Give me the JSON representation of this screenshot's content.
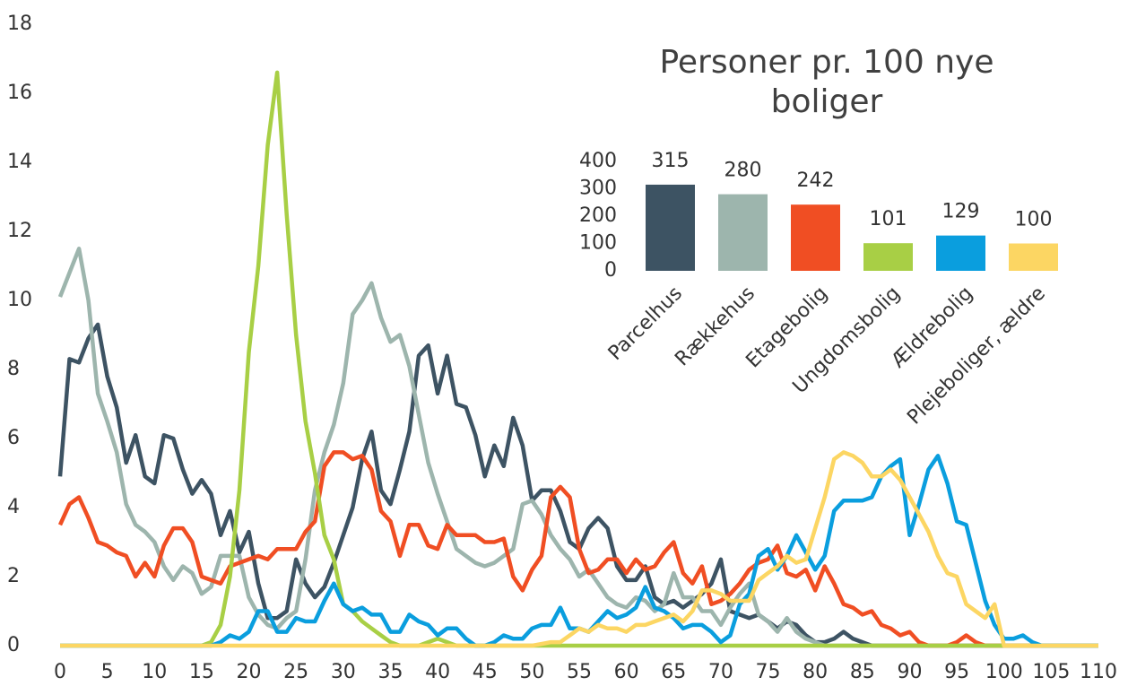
{
  "chart_data": [
    {
      "type": "line",
      "x": [
        0,
        1,
        2,
        3,
        4,
        5,
        6,
        7,
        8,
        9,
        10,
        11,
        12,
        13,
        14,
        15,
        16,
        17,
        18,
        19,
        20,
        21,
        22,
        23,
        24,
        25,
        26,
        27,
        28,
        29,
        30,
        31,
        32,
        33,
        34,
        35,
        36,
        37,
        38,
        39,
        40,
        41,
        42,
        43,
        44,
        45,
        46,
        47,
        48,
        49,
        50,
        51,
        52,
        53,
        54,
        55,
        56,
        57,
        58,
        59,
        60,
        61,
        62,
        63,
        64,
        65,
        66,
        67,
        68,
        69,
        70,
        71,
        72,
        73,
        74,
        75,
        76,
        77,
        78,
        79,
        80,
        81,
        82,
        83,
        84,
        85,
        86,
        87,
        88,
        89,
        90,
        91,
        92,
        93,
        94,
        95,
        96,
        97,
        98,
        99,
        100,
        101,
        102,
        103,
        104,
        105,
        106,
        107,
        108,
        109,
        110
      ],
      "xlim": [
        0,
        110
      ],
      "xticks": [
        0,
        5,
        10,
        15,
        20,
        25,
        30,
        35,
        40,
        45,
        50,
        55,
        60,
        65,
        70,
        75,
        80,
        85,
        90,
        95,
        100,
        105,
        110
      ],
      "ylim": [
        0,
        18
      ],
      "yticks": [
        0,
        2,
        4,
        6,
        8,
        10,
        12,
        14,
        16,
        18
      ],
      "series": [
        {
          "color": "#3d5363",
          "values": [
            4.9,
            8.3,
            8.2,
            8.9,
            9.3,
            7.8,
            6.9,
            5.3,
            6.1,
            4.9,
            4.7,
            6.1,
            6.0,
            5.1,
            4.4,
            4.8,
            4.4,
            3.2,
            3.9,
            2.7,
            3.3,
            1.8,
            0.8,
            0.8,
            1.0,
            2.5,
            1.8,
            1.4,
            1.7,
            2.4,
            3.2,
            4.0,
            5.4,
            6.2,
            4.5,
            4.1,
            5.1,
            6.2,
            8.4,
            8.7,
            7.3,
            8.4,
            7.0,
            6.9,
            6.1,
            4.9,
            5.8,
            5.2,
            6.6,
            5.8,
            4.2,
            4.5,
            4.5,
            3.9,
            3.0,
            2.8,
            3.4,
            3.7,
            3.4,
            2.3,
            1.9,
            1.9,
            2.3,
            1.4,
            1.2,
            1.3,
            1.1,
            1.3,
            1.5,
            1.8,
            2.5,
            1.0,
            0.9,
            0.8,
            0.9,
            0.7,
            0.5,
            0.7,
            0.6,
            0.3,
            0.1,
            0.1,
            0.2,
            0.4,
            0.2,
            0.1,
            0,
            0,
            0,
            0,
            0,
            0,
            0,
            0,
            0,
            0,
            0,
            0,
            0,
            0,
            0,
            0,
            0,
            0,
            0,
            0,
            0,
            0,
            0,
            0,
            0
          ]
        },
        {
          "color": "#9db5ad",
          "values": [
            10.1,
            10.8,
            11.5,
            10.0,
            7.3,
            6.5,
            5.6,
            4.1,
            3.5,
            3.3,
            3.0,
            2.3,
            1.9,
            2.3,
            2.1,
            1.5,
            1.7,
            2.6,
            2.6,
            2.6,
            1.4,
            0.9,
            0.6,
            0.5,
            0.8,
            1.0,
            2.5,
            4.5,
            5.6,
            6.4,
            7.6,
            9.6,
            10.0,
            10.5,
            9.5,
            8.8,
            9.0,
            8.1,
            6.7,
            5.3,
            4.4,
            3.6,
            2.8,
            2.6,
            2.4,
            2.3,
            2.4,
            2.6,
            2.8,
            4.1,
            4.2,
            3.8,
            3.2,
            2.8,
            2.5,
            2.0,
            2.2,
            1.8,
            1.4,
            1.2,
            1.1,
            1.4,
            1.3,
            1.0,
            1.2,
            2.1,
            1.4,
            1.4,
            1.0,
            1.0,
            0.6,
            1.1,
            1.5,
            1.8,
            0.9,
            0.7,
            0.4,
            0.8,
            0.4,
            0.2,
            0.1,
            0,
            0,
            0,
            0,
            0,
            0,
            0,
            0,
            0,
            0,
            0,
            0,
            0,
            0,
            0,
            0,
            0,
            0,
            0,
            0,
            0,
            0,
            0,
            0,
            0,
            0,
            0,
            0,
            0,
            0
          ]
        },
        {
          "color": "#f04e23",
          "values": [
            3.5,
            4.1,
            4.3,
            3.7,
            3.0,
            2.9,
            2.7,
            2.6,
            2.0,
            2.4,
            2.0,
            2.9,
            3.4,
            3.4,
            3.0,
            2.0,
            1.9,
            1.8,
            2.3,
            2.4,
            2.5,
            2.6,
            2.5,
            2.8,
            2.8,
            2.8,
            3.3,
            3.6,
            5.2,
            5.6,
            5.6,
            5.4,
            5.5,
            5.1,
            3.9,
            3.6,
            2.6,
            3.5,
            3.5,
            2.9,
            2.8,
            3.5,
            3.2,
            3.2,
            3.2,
            3.0,
            3.0,
            3.1,
            2.0,
            1.6,
            2.2,
            2.6,
            4.3,
            4.6,
            4.3,
            2.8,
            2.1,
            2.2,
            2.5,
            2.5,
            2.1,
            2.5,
            2.2,
            2.3,
            2.7,
            3.0,
            2.1,
            1.8,
            2.3,
            1.2,
            1.3,
            1.5,
            1.8,
            2.2,
            2.4,
            2.5,
            2.9,
            2.1,
            2.0,
            2.2,
            1.6,
            2.3,
            1.8,
            1.2,
            1.1,
            0.9,
            1.0,
            0.6,
            0.5,
            0.3,
            0.4,
            0.1,
            0,
            0,
            0,
            0.1,
            0.3,
            0.1,
            0,
            0,
            0,
            0,
            0,
            0,
            0,
            0,
            0,
            0,
            0,
            0,
            0
          ]
        },
        {
          "color": "#a8cf45",
          "values": [
            0,
            0,
            0,
            0,
            0,
            0,
            0,
            0,
            0,
            0,
            0,
            0,
            0,
            0,
            0,
            0,
            0.1,
            0.6,
            2.0,
            4.5,
            8.5,
            11.0,
            14.5,
            16.6,
            12.5,
            9.0,
            6.5,
            5.0,
            3.2,
            2.5,
            1.2,
            1.0,
            0.7,
            0.5,
            0.3,
            0.1,
            0,
            0,
            0,
            0.1,
            0.2,
            0.1,
            0,
            0,
            0,
            0,
            0,
            0,
            0,
            0,
            0,
            0,
            0,
            0,
            0,
            0,
            0,
            0,
            0,
            0,
            0,
            0,
            0,
            0,
            0,
            0,
            0,
            0,
            0,
            0,
            0,
            0,
            0,
            0,
            0,
            0,
            0,
            0,
            0,
            0,
            0,
            0,
            0,
            0,
            0,
            0,
            0,
            0,
            0,
            0,
            0,
            0,
            0,
            0,
            0,
            0,
            0,
            0,
            0,
            0,
            0,
            0,
            0,
            0,
            0,
            0,
            0,
            0,
            0,
            0,
            0
          ]
        },
        {
          "color": "#0a9ede",
          "values": [
            0,
            0,
            0,
            0,
            0,
            0,
            0,
            0,
            0,
            0,
            0,
            0,
            0,
            0,
            0,
            0,
            0,
            0.1,
            0.3,
            0.2,
            0.4,
            1.0,
            1.0,
            0.4,
            0.4,
            0.8,
            0.7,
            0.7,
            1.3,
            1.8,
            1.2,
            1.0,
            1.1,
            0.9,
            0.9,
            0.4,
            0.4,
            0.9,
            0.7,
            0.6,
            0.3,
            0.5,
            0.5,
            0.2,
            0,
            0,
            0.1,
            0.3,
            0.2,
            0.2,
            0.5,
            0.6,
            0.6,
            1.1,
            0.5,
            0.5,
            0.4,
            0.7,
            1.0,
            0.8,
            0.9,
            1.1,
            1.7,
            1.1,
            1.0,
            0.8,
            0.5,
            0.6,
            0.6,
            0.4,
            0.1,
            0.3,
            1.2,
            1.5,
            2.6,
            2.8,
            2.2,
            2.6,
            3.2,
            2.7,
            2.2,
            2.6,
            3.9,
            4.2,
            4.2,
            4.2,
            4.3,
            4.9,
            5.2,
            5.4,
            3.2,
            4.1,
            5.1,
            5.5,
            4.7,
            3.6,
            3.5,
            2.4,
            1.3,
            0.6,
            0.2,
            0.2,
            0.3,
            0.1,
            0,
            0,
            0,
            0,
            0,
            0,
            0
          ]
        },
        {
          "color": "#fcd663",
          "values": [
            0,
            0,
            0,
            0,
            0,
            0,
            0,
            0,
            0,
            0,
            0,
            0,
            0,
            0,
            0,
            0,
            0,
            0,
            0,
            0,
            0,
            0,
            0,
            0,
            0,
            0,
            0,
            0,
            0,
            0,
            0,
            0,
            0,
            0,
            0,
            0,
            0,
            0,
            0,
            0,
            0,
            0,
            0,
            0,
            0,
            0,
            0,
            0,
            0,
            0,
            0,
            0.05,
            0.1,
            0.1,
            0.3,
            0.5,
            0.4,
            0.6,
            0.5,
            0.5,
            0.4,
            0.6,
            0.6,
            0.7,
            0.8,
            0.9,
            0.7,
            1.0,
            1.6,
            1.6,
            1.5,
            1.3,
            1.3,
            1.3,
            1.9,
            2.1,
            2.3,
            2.6,
            2.4,
            2.5,
            3.4,
            4.3,
            5.4,
            5.6,
            5.5,
            5.3,
            4.9,
            4.9,
            5.1,
            4.8,
            4.3,
            3.8,
            3.3,
            2.6,
            2.1,
            2.0,
            1.2,
            1.0,
            0.8,
            1.2,
            0,
            0,
            0,
            0,
            0,
            0,
            0,
            0,
            0,
            0,
            0
          ]
        }
      ]
    },
    {
      "type": "bar",
      "title": "Personer pr. 100 nye boliger",
      "categories": [
        "Parcelhus",
        "Rækkehus",
        "Etagebolig",
        "Ungdomsbolig",
        "Ældrebolig",
        "Plejeboliger, ældre"
      ],
      "values": [
        315,
        280,
        242,
        101,
        129,
        100
      ],
      "colors": [
        "#3d5363",
        "#9db5ad",
        "#f04e23",
        "#a8cf45",
        "#0a9ede",
        "#fcd663"
      ],
      "ylim": [
        0,
        400
      ],
      "yticks": [
        0,
        100,
        200,
        300,
        400
      ]
    }
  ]
}
